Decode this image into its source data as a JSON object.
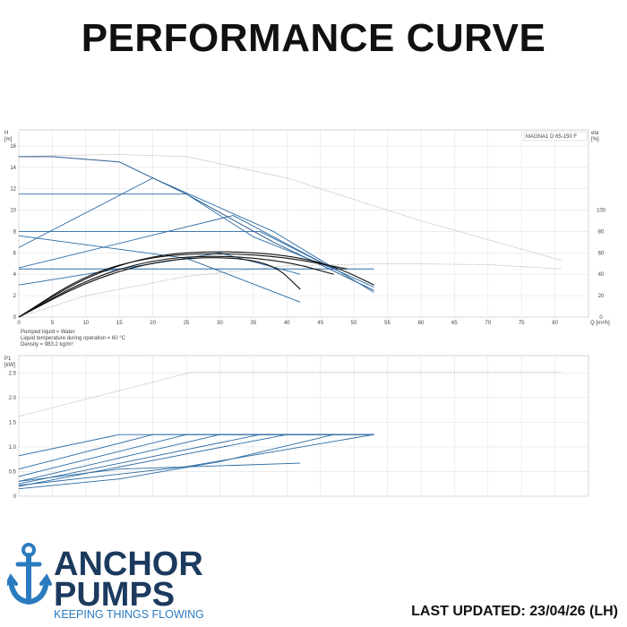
{
  "page": {
    "title": "PERFORMANCE CURVE",
    "last_updated": "LAST UPDATED: 23/04/26 (LH)"
  },
  "brand": {
    "name_line1": "ANCHOR",
    "name_line2": "PUMPS",
    "tagline": "KEEPING THINGS FLOWING",
    "colors": {
      "navy": "#1b3a5e",
      "blue": "#2b7bbf"
    },
    "logo_icon": "anchor-icon"
  },
  "chart_data": [
    {
      "type": "line",
      "model_label": "MAGNA1 D 65-150 F",
      "ylabel": "H\n[m]",
      "y2label": "eta\n[%]",
      "xlabel": "Q [m³/h]",
      "x_ticks": [
        0,
        5,
        10,
        15,
        20,
        25,
        30,
        35,
        40,
        45,
        50,
        55,
        60,
        65,
        70,
        75,
        80
      ],
      "y_ticks": [
        0,
        2,
        4,
        6,
        8,
        10,
        12,
        14,
        16
      ],
      "y2_ticks": [
        0,
        20,
        40,
        60,
        80,
        100
      ],
      "xlim": [
        0,
        85
      ],
      "ylim": [
        0,
        17.5
      ],
      "y2lim": [
        0,
        175
      ],
      "notes": [
        "Pumped liquid = Water",
        "Liquid temperature during operation = 60 °C",
        "Density = 983.2 kg/m³"
      ],
      "series": [
        {
          "kind": "head_dashed",
          "x": [
            0,
            5,
            15,
            25,
            40,
            60,
            81
          ],
          "y": [
            15,
            15.1,
            15.2,
            15,
            13,
            9,
            5.3
          ]
        },
        {
          "kind": "eta_dashed",
          "x": [
            0,
            10,
            25,
            40,
            55,
            70,
            81
          ],
          "y": [
            0,
            20,
            38,
            48,
            50,
            49,
            45
          ]
        },
        {
          "kind": "head_max",
          "x": [
            0,
            5,
            15,
            25,
            38,
            48,
            53
          ],
          "y": [
            15,
            15,
            14.5,
            11.5,
            7,
            4,
            2.5
          ]
        },
        {
          "kind": "head_prop",
          "x": [
            0,
            20,
            38,
            53
          ],
          "y": [
            6.5,
            13,
            8,
            2.3
          ]
        },
        {
          "kind": "head_const",
          "x": [
            0,
            25,
            35,
            47,
            53
          ],
          "y": [
            11.5,
            11.5,
            7.5,
            4.5,
            2.8
          ]
        },
        {
          "kind": "head_const",
          "x": [
            0,
            36,
            47
          ],
          "y": [
            8,
            8,
            4.5
          ]
        },
        {
          "kind": "head_prop",
          "x": [
            0,
            32,
            47
          ],
          "y": [
            4.6,
            9.5,
            4.5
          ]
        },
        {
          "kind": "head_const",
          "x": [
            0,
            25,
            42
          ],
          "y": [
            7.6,
            5.5,
            1.4
          ]
        },
        {
          "kind": "head_prop",
          "x": [
            0,
            30,
            42
          ],
          "y": [
            3,
            6,
            4
          ]
        },
        {
          "kind": "head_const",
          "x": [
            0,
            53
          ],
          "y": [
            4.5,
            4.5
          ]
        },
        {
          "kind": "eta",
          "x": [
            0,
            10,
            20,
            30,
            40,
            47,
            53
          ],
          "y": [
            0,
            38,
            58,
            62,
            58,
            48,
            30
          ]
        },
        {
          "kind": "eta",
          "x": [
            0,
            10,
            20,
            30,
            40,
            47
          ],
          "y": [
            0,
            35,
            54,
            58,
            52,
            40
          ]
        },
        {
          "kind": "eta",
          "x": [
            0,
            10,
            20,
            30,
            38,
            42
          ],
          "y": [
            0,
            33,
            52,
            57,
            50,
            26
          ]
        },
        {
          "kind": "eta",
          "x": [
            0,
            10,
            20,
            30,
            40,
            49
          ],
          "y": [
            0,
            40,
            57,
            60,
            56,
            45
          ]
        }
      ]
    },
    {
      "type": "line",
      "ylabel": "P1\n[kW]",
      "y_ticks": [
        0,
        0.5,
        1.0,
        1.5,
        2.0,
        2.5
      ],
      "y_tick_labels": [
        "0",
        "0.5",
        "1.0",
        "1.5",
        "2.0",
        "2.5"
      ],
      "x_ticks": [
        0,
        5,
        10,
        15,
        20,
        25,
        30,
        35,
        40,
        45,
        50,
        55,
        60,
        65,
        70,
        75,
        80
      ],
      "xlim": [
        0,
        85
      ],
      "ylim": [
        0,
        2.85
      ],
      "series": [
        {
          "kind": "power_dashed",
          "x": [
            0,
            26,
            81
          ],
          "y": [
            1.62,
            2.52,
            2.52
          ]
        },
        {
          "kind": "power",
          "x": [
            0,
            15,
            53
          ],
          "y": [
            0.82,
            1.25,
            1.25
          ]
        },
        {
          "kind": "power",
          "x": [
            0,
            20,
            48
          ],
          "y": [
            0.55,
            1.25,
            1.25
          ]
        },
        {
          "kind": "power",
          "x": [
            0,
            25,
            44
          ],
          "y": [
            0.4,
            1.25,
            1.25
          ]
        },
        {
          "kind": "power",
          "x": [
            0,
            30,
            53
          ],
          "y": [
            0.3,
            1.25,
            1.25
          ]
        },
        {
          "kind": "power",
          "x": [
            0,
            36,
            53
          ],
          "y": [
            0.25,
            1.25,
            1.25
          ]
        },
        {
          "kind": "power",
          "x": [
            0,
            40,
            53
          ],
          "y": [
            0.2,
            1.25,
            1.25
          ]
        },
        {
          "kind": "power",
          "x": [
            0,
            15,
            42
          ],
          "y": [
            0.3,
            0.55,
            0.67
          ]
        },
        {
          "kind": "power",
          "x": [
            0,
            25,
            53
          ],
          "y": [
            0.22,
            0.6,
            1.25
          ]
        },
        {
          "kind": "power",
          "x": [
            0,
            15,
            30,
            47
          ],
          "y": [
            0.15,
            0.35,
            0.7,
            1.25
          ]
        }
      ]
    }
  ]
}
